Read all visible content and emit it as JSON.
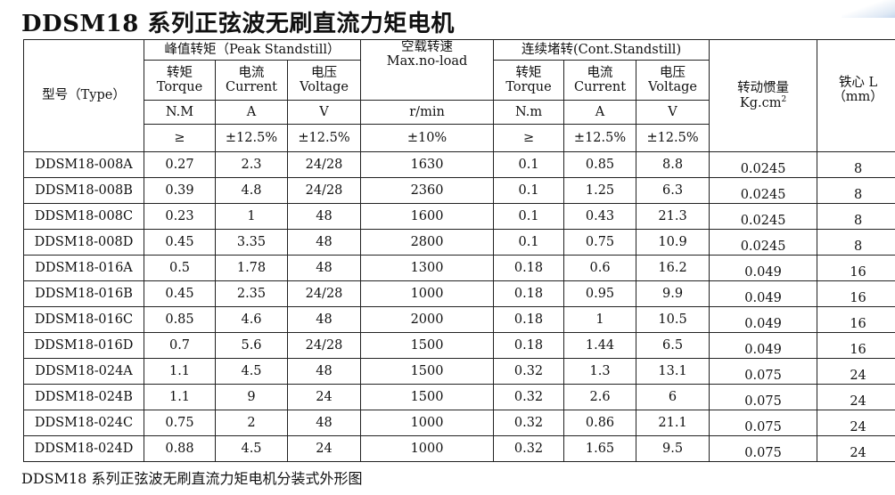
{
  "title": "DDSM18 系列正弦波无刷直流力矩电机",
  "caption": "DDSM18 系列正弦波无刷直流力矩电机分装式外形图",
  "header": {
    "type": "型号（Type）",
    "peak": "峰值转矩（Peak Standstill）",
    "noload": "空载转速",
    "noload_en": "Max.no-load",
    "cont": "连续堵转(Cont.Standstill)",
    "inertia": "转动惯量",
    "inertia_unit": "Kg.cm",
    "inertia_sup": "2",
    "core": "铁心 L",
    "core_unit": "（mm）",
    "torque_cn": "转矩",
    "torque_en": "Torque",
    "current_cn": "电流",
    "current_en": "Current",
    "voltage_cn": "电压",
    "voltage_en": "Voltage",
    "peak_torque_unit": "N.M",
    "cont_torque_unit": "N.m",
    "amp_unit": "A",
    "volt_unit": "V",
    "speed_unit": "r/min",
    "ge": "≥",
    "tol_12": "±12.5%",
    "tol_10": "±10%"
  },
  "rows": [
    {
      "model": "DDSM18-008A",
      "pt": "0.27",
      "pc": "2.3",
      "pv": "24/28",
      "spd": "1630",
      "ct": "0.1",
      "cc": "0.85",
      "cv": "8.8",
      "j": "0.0245",
      "l": "8"
    },
    {
      "model": "DDSM18-008B",
      "pt": "0.39",
      "pc": "4.8",
      "pv": "24/28",
      "spd": "2360",
      "ct": "0.1",
      "cc": "1.25",
      "cv": "6.3",
      "j": "0.0245",
      "l": "8"
    },
    {
      "model": "DDSM18-008C",
      "pt": "0.23",
      "pc": "1",
      "pv": "48",
      "spd": "1600",
      "ct": "0.1",
      "cc": "0.43",
      "cv": "21.3",
      "j": "0.0245",
      "l": "8"
    },
    {
      "model": "DDSM18-008D",
      "pt": "0.45",
      "pc": "3.35",
      "pv": "48",
      "spd": "2800",
      "ct": "0.1",
      "cc": "0.75",
      "cv": "10.9",
      "j": "0.0245",
      "l": "8"
    },
    {
      "model": "DDSM18-016A",
      "pt": "0.5",
      "pc": "1.78",
      "pv": "48",
      "spd": "1300",
      "ct": "0.18",
      "cc": "0.6",
      "cv": "16.2",
      "j": "0.049",
      "l": "16"
    },
    {
      "model": "DDSM18-016B",
      "pt": "0.45",
      "pc": "2.35",
      "pv": "24/28",
      "spd": "1000",
      "ct": "0.18",
      "cc": "0.95",
      "cv": "9.9",
      "j": "0.049",
      "l": "16"
    },
    {
      "model": "DDSM18-016C",
      "pt": "0.85",
      "pc": "4.6",
      "pv": "48",
      "spd": "2000",
      "ct": "0.18",
      "cc": "1",
      "cv": "10.5",
      "j": "0.049",
      "l": "16"
    },
    {
      "model": "DDSM18-016D",
      "pt": "0.7",
      "pc": "5.6",
      "pv": "24/28",
      "spd": "1500",
      "ct": "0.18",
      "cc": "1.44",
      "cv": "6.5",
      "j": "0.049",
      "l": "16"
    },
    {
      "model": "DDSM18-024A",
      "pt": "1.1",
      "pc": "4.5",
      "pv": "48",
      "spd": "1500",
      "ct": "0.32",
      "cc": "1.3",
      "cv": "13.1",
      "j": "0.075",
      "l": "24"
    },
    {
      "model": "DDSM18-024B",
      "pt": "1.1",
      "pc": "9",
      "pv": "24",
      "spd": "1500",
      "ct": "0.32",
      "cc": "2.6",
      "cv": "6",
      "j": "0.075",
      "l": "24"
    },
    {
      "model": "DDSM18-024C",
      "pt": "0.75",
      "pc": "2",
      "pv": "48",
      "spd": "1000",
      "ct": "0.32",
      "cc": "0.86",
      "cv": "21.1",
      "j": "0.075",
      "l": "24"
    },
    {
      "model": "DDSM18-024D",
      "pt": "0.88",
      "pc": "4.5",
      "pv": "24",
      "spd": "1000",
      "ct": "0.32",
      "cc": "1.65",
      "cv": "9.5",
      "j": "0.075",
      "l": "24"
    }
  ]
}
